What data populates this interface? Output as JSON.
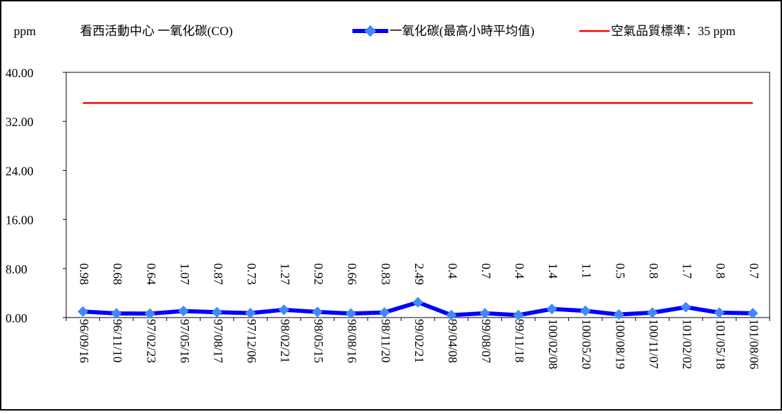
{
  "header": {
    "unit": "ppm",
    "title": "看西活動中心 一氧化碳(CO)"
  },
  "legend": {
    "placement": "top-right",
    "items": [
      {
        "label": "一氧化碳(最高小時平均值)",
        "color": "#0000ff",
        "marker": "diamond-icon"
      },
      {
        "label": "空氣品質標準：35 ppm",
        "color": "#ff0000",
        "marker": "line"
      }
    ]
  },
  "chart_data": {
    "type": "line",
    "title": "看西活動中心 一氧化碳(CO)",
    "ylabel": "ppm",
    "xlabel": "",
    "ylim": [
      0,
      40
    ],
    "yticks": [
      "0.00",
      "8.00",
      "16.00",
      "24.00",
      "32.00",
      "40.00"
    ],
    "grid": false,
    "legend_placement": "top-right",
    "categories": [
      "96/09/16",
      "96/11/10",
      "97/02/23",
      "97/05/16",
      "97/08/17",
      "97/12/06",
      "98/02/21",
      "98/05/15",
      "98/08/16",
      "98/11/20",
      "99/02/21",
      "99/04/08",
      "99/08/07",
      "99/11/18",
      "100/02/08",
      "100/05/20",
      "100/08/19",
      "100/11/07",
      "101/02/02",
      "101/05/18",
      "101/08/06"
    ],
    "series": [
      {
        "name": "一氧化碳(最高小時平均值)",
        "color": "#0000ff",
        "values": [
          0.98,
          0.68,
          0.64,
          1.07,
          0.87,
          0.73,
          1.27,
          0.92,
          0.66,
          0.83,
          2.49,
          0.4,
          0.7,
          0.4,
          1.4,
          1.1,
          0.5,
          0.8,
          1.7,
          0.8,
          0.7
        ],
        "labels": [
          "0.98",
          "0.68",
          "0.64",
          "1.07",
          "0.87",
          "0.73",
          "1.27",
          "0.92",
          "0.66",
          "0.83",
          "2.49",
          "0.4",
          "0.7",
          "0.4",
          "1.4",
          "1.1",
          "0.5",
          "0.8",
          "1.7",
          "0.8",
          "0.7"
        ]
      },
      {
        "name": "空氣品質標準：35 ppm",
        "color": "#ff0000",
        "values": [
          35,
          35,
          35,
          35,
          35,
          35,
          35,
          35,
          35,
          35,
          35,
          35,
          35,
          35,
          35,
          35,
          35,
          35,
          35,
          35,
          35
        ]
      }
    ]
  }
}
